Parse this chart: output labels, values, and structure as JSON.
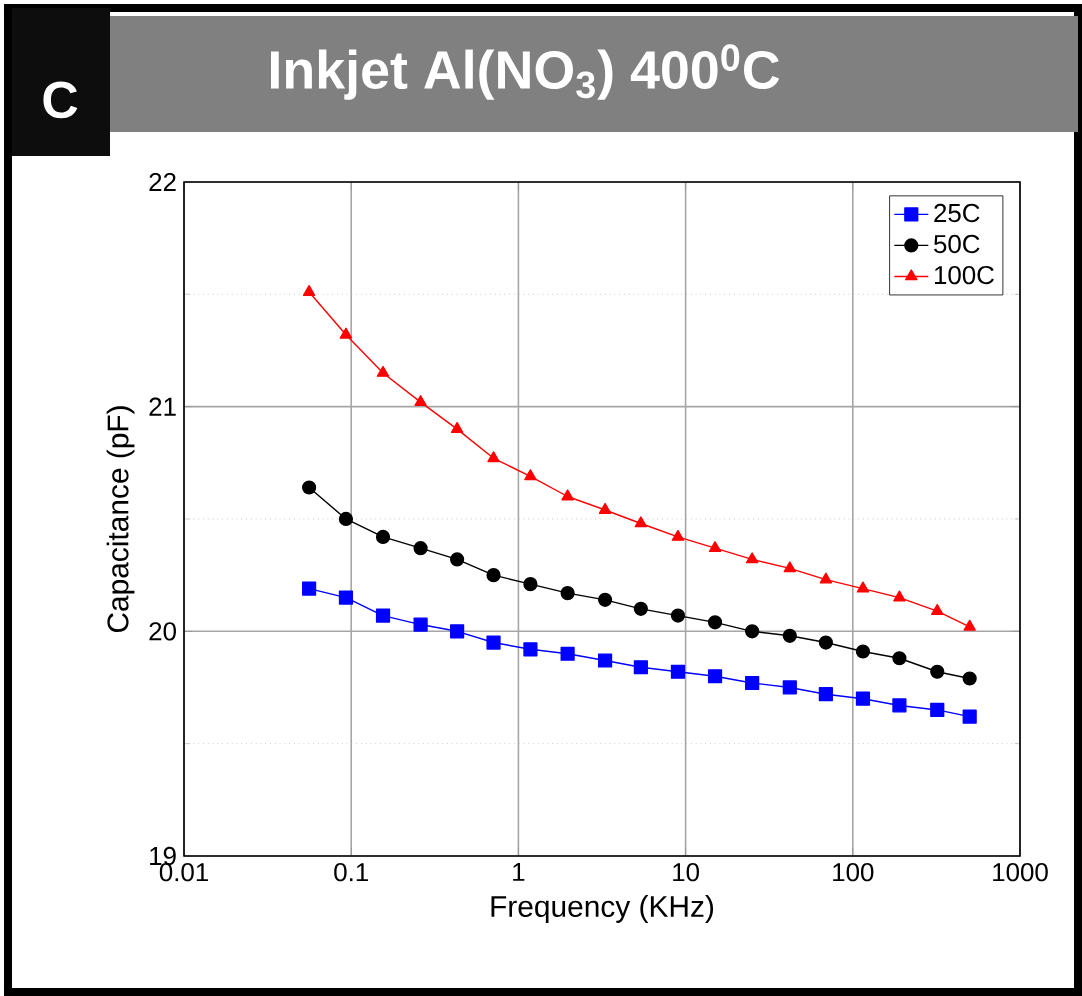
{
  "chart_data": {
    "type": "line",
    "title": "Inkjet Al(NO$_{3}$) 400$^{0}$C",
    "annotations": [
      "C"
    ],
    "xlabel": "Frequency (KHz)",
    "ylabel": "Capacitance (pF)",
    "x": [
      0.056,
      0.093,
      0.155,
      0.26,
      0.43,
      0.71,
      1.18,
      1.97,
      3.3,
      5.4,
      9,
      15,
      25,
      42,
      69,
      115,
      190,
      320,
      500
    ],
    "series": [
      {
        "name": "25C",
        "color": "#0000ff",
        "marker": "square",
        "values": [
          20.19,
          20.15,
          20.07,
          20.03,
          20.0,
          19.95,
          19.92,
          19.9,
          19.87,
          19.84,
          19.82,
          19.8,
          19.77,
          19.75,
          19.72,
          19.7,
          19.67,
          19.65,
          19.62
        ]
      },
      {
        "name": "50C",
        "color": "#000000",
        "marker": "circle",
        "values": [
          20.64,
          20.5,
          20.42,
          20.37,
          20.32,
          20.25,
          20.21,
          20.17,
          20.14,
          20.1,
          20.07,
          20.04,
          20.0,
          19.98,
          19.95,
          19.91,
          19.88,
          19.82,
          19.79
        ]
      },
      {
        "name": "100C",
        "color": "#ff0000",
        "marker": "triangle",
        "values": [
          21.51,
          21.32,
          21.15,
          21.02,
          20.9,
          20.77,
          20.69,
          20.6,
          20.54,
          20.48,
          20.42,
          20.37,
          20.32,
          20.28,
          20.23,
          20.19,
          20.15,
          20.09,
          20.02
        ]
      }
    ],
    "log": "x",
    "xlim": [
      0.01,
      1000
    ],
    "ylim": [
      19,
      22
    ],
    "xticks": [
      0.01,
      0.1,
      1,
      10,
      100,
      1000
    ],
    "yticks": [
      19,
      20,
      21,
      22
    ],
    "grid": true,
    "legend": "top right",
    "line_style": "solid"
  }
}
